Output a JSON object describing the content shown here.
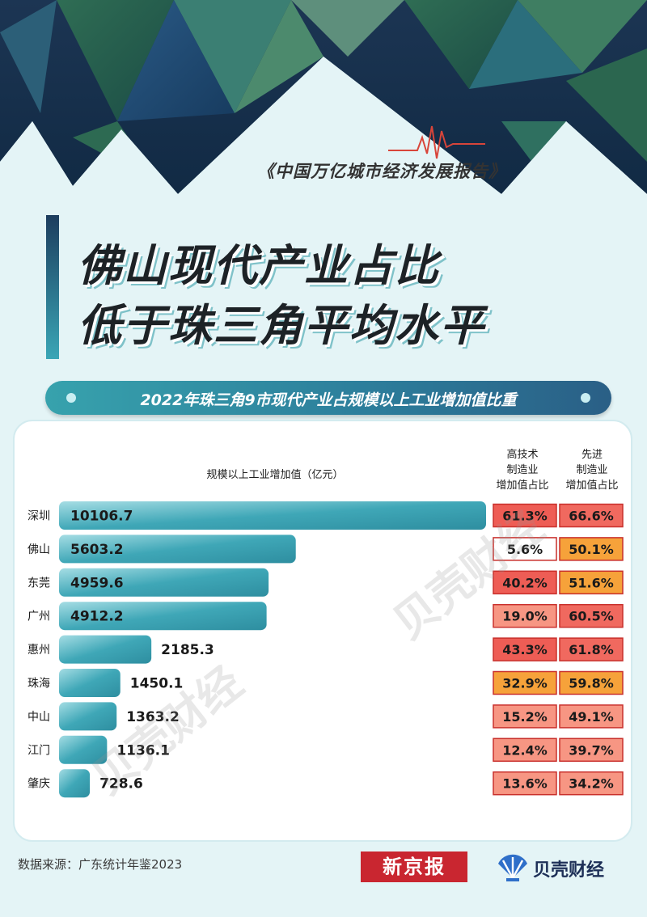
{
  "header": {
    "report_name": "《中国万亿城市经济发展报告》",
    "title_line1": "佛山现代产业占比",
    "title_line2": "低于珠三角平均水平",
    "subtitle": "2022年珠三角9市现代产业占规模以上工业增加值比重"
  },
  "columns": {
    "bar_header": "规模以上工业增加值（亿元）",
    "hightech_header": [
      "高技术",
      "制造业",
      "增加值占比"
    ],
    "advanced_header": [
      "先进",
      "制造业",
      "增加值占比"
    ]
  },
  "chart_data": {
    "type": "bar",
    "orientation": "horizontal",
    "categories": [
      "深圳",
      "佛山",
      "东莞",
      "广州",
      "惠州",
      "珠海",
      "中山",
      "江门",
      "肇庆"
    ],
    "series": [
      {
        "name": "规模以上工业增加值（亿元）",
        "values": [
          10106.7,
          5603.2,
          4959.6,
          4912.2,
          2185.3,
          1450.1,
          1363.2,
          1136.1,
          728.6
        ]
      }
    ],
    "labels": [
      "10106.7",
      "5603.2",
      "4959.6",
      "4912.2",
      "2185.3",
      "1450.1",
      "1363.2",
      "1136.1",
      "728.6"
    ],
    "hightech_share": [
      "61.3%",
      "5.6%",
      "40.2%",
      "19.0%",
      "43.3%",
      "32.9%",
      "15.2%",
      "12.4%",
      "13.6%"
    ],
    "advanced_share": [
      "66.6%",
      "50.1%",
      "51.6%",
      "60.5%",
      "61.8%",
      "59.8%",
      "49.1%",
      "39.7%",
      "34.2%"
    ],
    "hightech_colors": [
      "#ee5d55",
      "#ffffff",
      "#ee5d55",
      "#f79683",
      "#ee5d55",
      "#f6a23a",
      "#f79683",
      "#f79683",
      "#f79683"
    ],
    "advanced_colors": [
      "#f0695f",
      "#f6a23a",
      "#f6a23a",
      "#f0695f",
      "#f0695f",
      "#f6a23a",
      "#f79683",
      "#f79683",
      "#f79683"
    ],
    "bar_color": "#3fa7b7",
    "xlim": [
      0,
      10106.7
    ]
  },
  "watermark": "贝壳财经",
  "footer": {
    "source": "数据来源：广东统计年鉴2023",
    "brand1": "新京报",
    "brand2": "贝壳财经"
  },
  "colors": {
    "background": "#e4f4f6",
    "accent_teal": "#3aa6b6",
    "accent_red": "#c92630",
    "brand_navy": "#1d2f57"
  }
}
